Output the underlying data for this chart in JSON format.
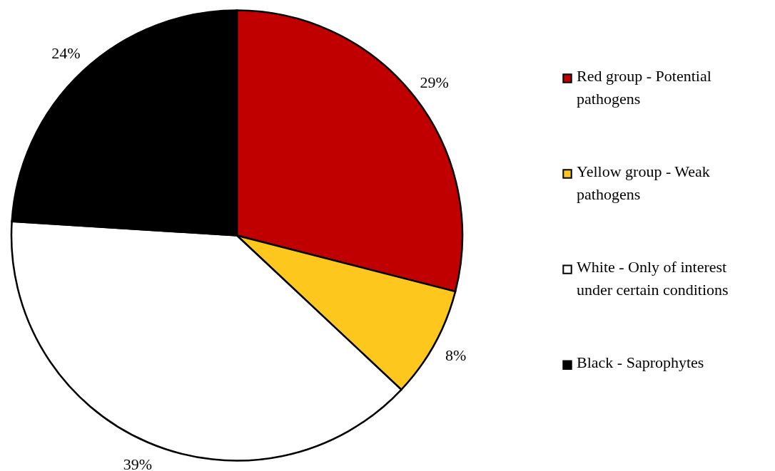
{
  "chart_data": {
    "type": "pie",
    "categories": [
      "Red group - Potential pathogens",
      "Yellow group - Weak pathogens",
      "White - Only of interest under certain conditions",
      "Black - Saprophytes"
    ],
    "values": [
      29,
      8,
      39,
      24
    ],
    "colors": [
      "#c00000",
      "#fdc71d",
      "#ffffff",
      "#000000"
    ],
    "value_labels": [
      "29%",
      "8%",
      "39%",
      "24%"
    ],
    "legend": "right"
  }
}
